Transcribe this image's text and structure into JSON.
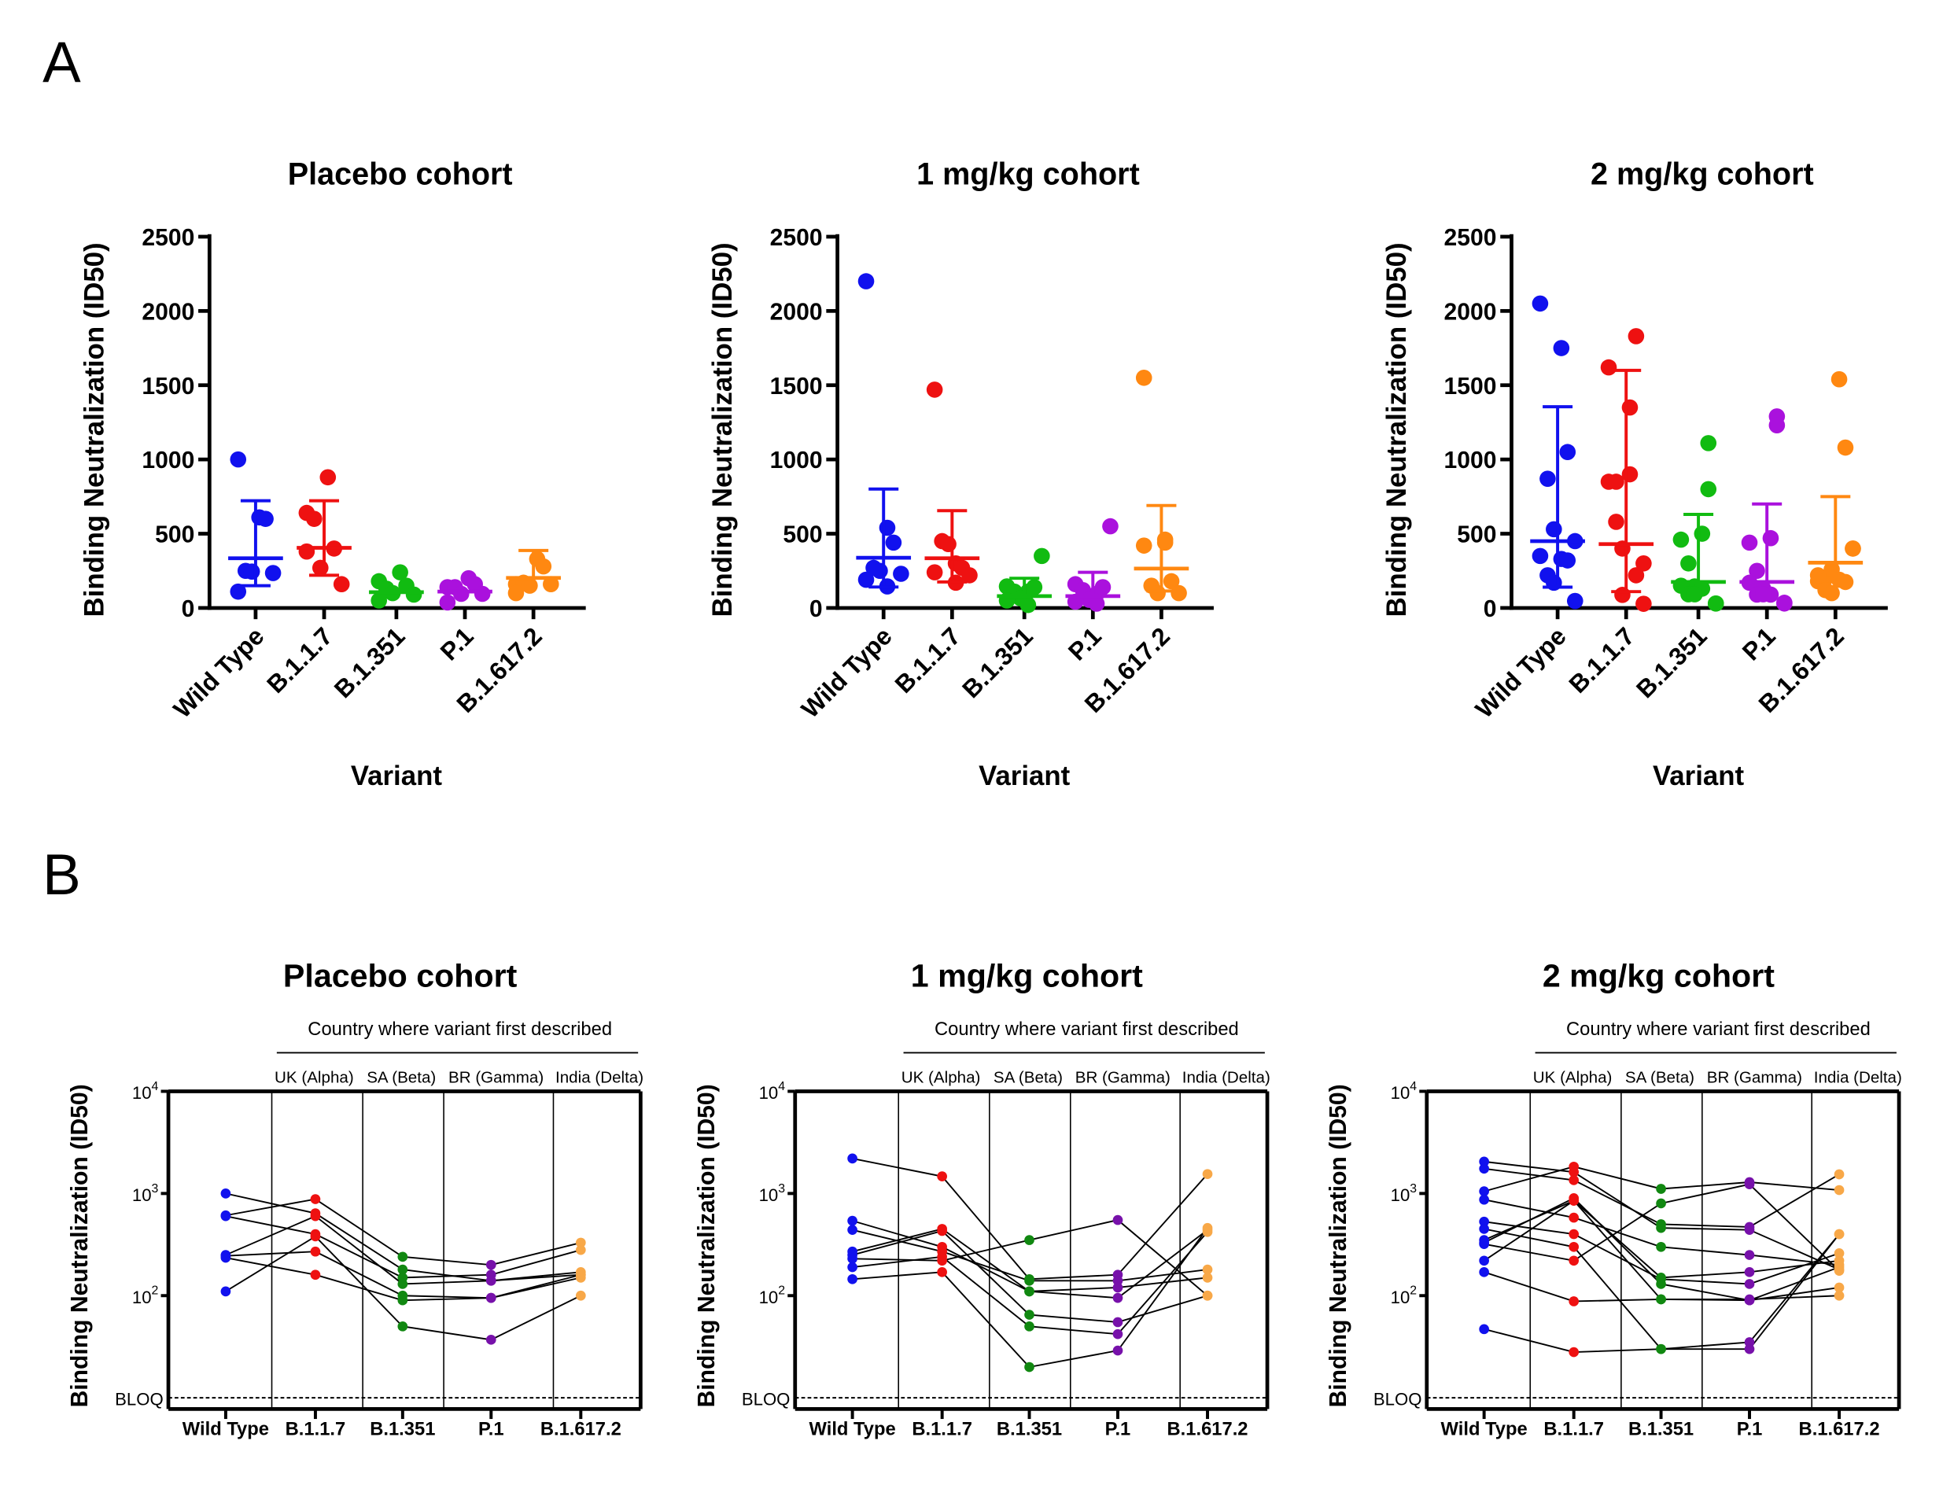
{
  "panel_labels": [
    "A",
    "B"
  ],
  "colors": {
    "A": [
      "#1111ee",
      "#ee1111",
      "#11bb11",
      "#aa11dd",
      "#ff8811"
    ],
    "B": [
      "#1111ee",
      "#ee1111",
      "#118811",
      "#7711aa",
      "#f8a848"
    ],
    "lines": "#000000"
  },
  "chart_data": [
    {
      "panel": "A",
      "type": "scatter",
      "title": "Placebo cohort",
      "ylabel": "Binding Neutralization (ID50)",
      "xlabel": "Variant",
      "categories": [
        "Wild Type",
        "B.1.1.7",
        "B.1.351",
        "P.1",
        "B.1.617.2"
      ],
      "ylim": [
        0,
        2500
      ],
      "yticks": [
        0,
        500,
        1000,
        1500,
        2000,
        2500
      ],
      "values": [
        [
          1000,
          610,
          600,
          250,
          245,
          235,
          110
        ],
        [
          640,
          880,
          400,
          600,
          270,
          160,
          380
        ],
        [
          180,
          240,
          150,
          130,
          100,
          90,
          50
        ],
        [
          140,
          200,
          160,
          140,
          95,
          95,
          37
        ],
        [
          160,
          330,
          280,
          170,
          150,
          160,
          100
        ]
      ],
      "mean": [
        335,
        405,
        106,
        110,
        202
      ],
      "sd_upper": [
        722,
        722,
        null,
        null,
        387
      ],
      "sd_lower": [
        150,
        220,
        null,
        null,
        null
      ]
    },
    {
      "panel": "A",
      "type": "scatter",
      "title": "1 mg/kg cohort",
      "ylabel": "Binding Neutralization (ID50)",
      "xlabel": "Variant",
      "categories": [
        "Wild Type",
        "B.1.1.7",
        "B.1.351",
        "P.1",
        "B.1.617.2"
      ],
      "ylim": [
        0,
        2500
      ],
      "yticks": [
        0,
        500,
        1000,
        1500,
        2000,
        2500
      ],
      "values": [
        [
          2200,
          540,
          440,
          270,
          250,
          230,
          190,
          145
        ],
        [
          1470,
          300,
          270,
          450,
          430,
          220,
          240,
          170
        ],
        [
          145,
          110,
          140,
          110,
          65,
          350,
          50,
          20
        ],
        [
          160,
          95,
          140,
          120,
          55,
          550,
          42,
          29
        ],
        [
          1550,
          440,
          180,
          150,
          100,
          100,
          420,
          460
        ]
      ],
      "mean": [
        338,
        335,
        80,
        80,
        265
      ],
      "sd_upper": [
        801,
        655,
        200,
        240,
        690
      ],
      "sd_lower": [
        141,
        175,
        null,
        null,
        114
      ]
    },
    {
      "panel": "A",
      "type": "scatter",
      "title": "2 mg/kg cohort",
      "ylabel": "Binding Neutralization (ID50)",
      "xlabel": "Variant",
      "categories": [
        "Wild Type",
        "B.1.1.7",
        "B.1.351",
        "P.1",
        "B.1.617.2"
      ],
      "ylim": [
        0,
        2500
      ],
      "yticks": [
        0,
        500,
        1000,
        1500,
        2000,
        2500
      ],
      "values": [
        [
          2050,
          1750,
          1050,
          870,
          530,
          450,
          350,
          330,
          320,
          220,
          170,
          47
        ],
        [
          1620,
          1350,
          1830,
          580,
          400,
          300,
          850,
          900,
          220,
          850,
          88,
          28
        ],
        [
          460,
          500,
          1110,
          300,
          145,
          30,
          150,
          130,
          800,
          92,
          92,
          30
        ],
        [
          440,
          470,
          1290,
          250,
          130,
          35,
          170,
          90,
          1230,
          90,
          92,
          30
        ],
        [
          180,
          1540,
          1080,
          200,
          260,
          400,
          220,
          190,
          175,
          120,
          100,
          400
        ]
      ],
      "mean": [
        450,
        430,
        175,
        175,
        305
      ],
      "sd_upper": [
        1355,
        1600,
        630,
        700,
        750
      ],
      "sd_lower": [
        140,
        110,
        null,
        null,
        null
      ]
    },
    {
      "panel": "B",
      "type": "line",
      "title": "Placebo cohort",
      "ylabel": "Binding Neutralization (ID50)",
      "header": "Country where variant first described",
      "country_labels": [
        "UK (Alpha)",
        "SA (Beta)",
        "BR (Gamma)",
        "India (Delta)"
      ],
      "categories": [
        "Wild Type",
        "B.1.1.7",
        "B.1.351",
        "P.1",
        "B.1.617.2"
      ],
      "yscale": "log",
      "ylim": [
        8,
        10000
      ],
      "yticks": [
        100,
        1000,
        10000
      ],
      "bloq_label": "BLOQ",
      "bloq_value": 10,
      "subjects": [
        [
          1000,
          640,
          180,
          140,
          160
        ],
        [
          610,
          880,
          240,
          200,
          330
        ],
        [
          600,
          400,
          150,
          160,
          280
        ],
        [
          250,
          600,
          130,
          140,
          170
        ],
        [
          245,
          270,
          100,
          95,
          150
        ],
        [
          235,
          160,
          90,
          95,
          160
        ],
        [
          110,
          380,
          50,
          37,
          100
        ]
      ]
    },
    {
      "panel": "B",
      "type": "line",
      "title": "1 mg/kg cohort",
      "ylabel": "Binding Neutralization (ID50)",
      "header": "Country where variant first described",
      "country_labels": [
        "UK (Alpha)",
        "SA (Beta)",
        "BR (Gamma)",
        "India (Delta)"
      ],
      "categories": [
        "Wild Type",
        "B.1.1.7",
        "B.1.351",
        "P.1",
        "B.1.617.2"
      ],
      "yscale": "log",
      "ylim": [
        8,
        10000
      ],
      "yticks": [
        100,
        1000,
        10000
      ],
      "bloq_label": "BLOQ",
      "bloq_value": 10,
      "subjects": [
        [
          2200,
          1470,
          145,
          160,
          1550
        ],
        [
          540,
          300,
          110,
          95,
          440
        ],
        [
          440,
          270,
          140,
          140,
          180
        ],
        [
          270,
          450,
          110,
          120,
          150
        ],
        [
          250,
          430,
          65,
          55,
          100
        ],
        [
          230,
          220,
          350,
          550,
          100
        ],
        [
          190,
          240,
          50,
          42,
          420
        ],
        [
          145,
          170,
          20,
          29,
          460
        ]
      ]
    },
    {
      "panel": "B",
      "type": "line",
      "title": "2 mg/kg cohort",
      "ylabel": "Binding Neutralization (ID50)",
      "header": "Country where variant first described",
      "country_labels": [
        "UK (Alpha)",
        "SA (Beta)",
        "BR (Gamma)",
        "India (Delta)"
      ],
      "categories": [
        "Wild Type",
        "B.1.1.7",
        "B.1.351",
        "P.1",
        "B.1.617.2"
      ],
      "yscale": "log",
      "ylim": [
        8,
        10000
      ],
      "yticks": [
        100,
        1000,
        10000
      ],
      "bloq_label": "BLOQ",
      "bloq_value": 10,
      "subjects": [
        [
          2050,
          1620,
          460,
          440,
          180
        ],
        [
          1750,
          1350,
          500,
          470,
          1540
        ],
        [
          1050,
          1830,
          1110,
          1290,
          1080
        ],
        [
          870,
          580,
          300,
          250,
          200
        ],
        [
          530,
          400,
          145,
          130,
          260
        ],
        [
          450,
          300,
          30,
          35,
          400
        ],
        [
          350,
          850,
          150,
          170,
          220
        ],
        [
          330,
          900,
          130,
          90,
          190
        ],
        [
          320,
          220,
          800,
          1230,
          175
        ],
        [
          220,
          850,
          92,
          90,
          120
        ],
        [
          170,
          88,
          92,
          92,
          100
        ],
        [
          47,
          28,
          30,
          30,
          400
        ]
      ]
    }
  ]
}
